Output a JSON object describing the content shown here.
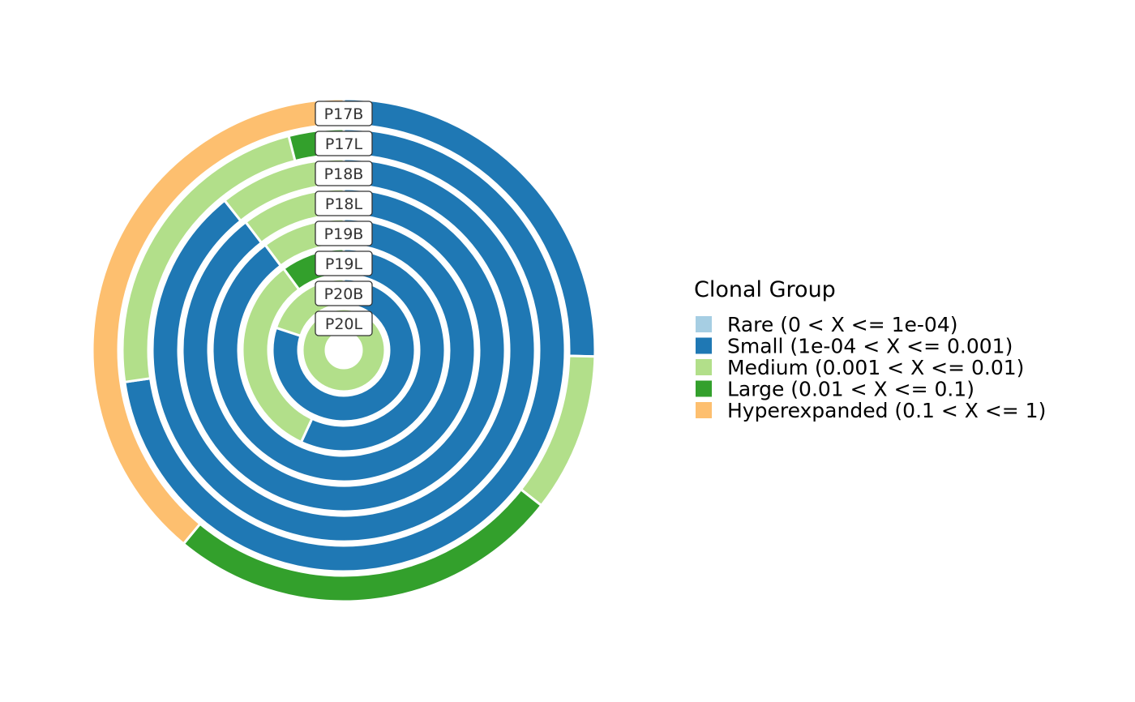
{
  "chart_data": {
    "type": "pie",
    "subtype": "concentric-donut",
    "legend": {
      "title": "Clonal Group",
      "placement": "right",
      "entries": [
        {
          "name": "Rare (0 < X <= 1e-04)",
          "color": "#A6CEE3"
        },
        {
          "name": "Small (1e-04 < X <= 0.001)",
          "color": "#1F78B4"
        },
        {
          "name": "Medium (0.001 < X <= 0.01)",
          "color": "#B2DF8A"
        },
        {
          "name": "Large (0.01 < X <= 0.1)",
          "color": "#33A02C"
        },
        {
          "name": "Hyperexpanded (0.1 < X <= 1)",
          "color": "#FDBF6F"
        }
      ]
    },
    "rings": [
      {
        "label": "P17B",
        "slices": [
          {
            "group": "Small (1e-04 < X <= 0.001)",
            "value": 0.254
          },
          {
            "group": "Medium (0.001 < X <= 0.01)",
            "value": 0.102
          },
          {
            "group": "Large (0.01 < X <= 0.1)",
            "value": 0.254
          },
          {
            "group": "Hyperexpanded (0.1 < X <= 1)",
            "value": 0.39
          }
        ]
      },
      {
        "label": "P17L",
        "slices": [
          {
            "group": "Small (1e-04 < X <= 0.001)",
            "value": 0.727
          },
          {
            "group": "Medium (0.001 < X <= 0.01)",
            "value": 0.233
          },
          {
            "group": "Large (0.01 < X <= 0.1)",
            "value": 0.04
          }
        ]
      },
      {
        "label": "P18B",
        "slices": [
          {
            "group": "Small (1e-04 < X <= 0.001)",
            "value": 0.893
          },
          {
            "group": "Medium (0.001 < X <= 0.01)",
            "value": 0.107
          }
        ]
      },
      {
        "label": "P18L",
        "slices": [
          {
            "group": "Small (1e-04 < X <= 0.001)",
            "value": 0.896
          },
          {
            "group": "Medium (0.001 < X <= 0.01)",
            "value": 0.104
          }
        ]
      },
      {
        "label": "P19B",
        "slices": [
          {
            "group": "Small (1e-04 < X <= 0.001)",
            "value": 0.898
          },
          {
            "group": "Medium (0.001 < X <= 0.01)",
            "value": 0.102
          }
        ]
      },
      {
        "label": "P19L",
        "slices": [
          {
            "group": "Small (1e-04 < X <= 0.001)",
            "value": 0.569
          },
          {
            "group": "Medium (0.001 < X <= 0.01)",
            "value": 0.33
          },
          {
            "group": "Large (0.01 < X <= 0.1)",
            "value": 0.101
          }
        ]
      },
      {
        "label": "P20B",
        "slices": [
          {
            "group": "Small (1e-04 < X <= 0.001)",
            "value": 0.801
          },
          {
            "group": "Medium (0.001 < X <= 0.01)",
            "value": 0.199
          }
        ]
      },
      {
        "label": "P20L",
        "slices": [
          {
            "group": "Medium (0.001 < X <= 0.01)",
            "value": 1.0
          }
        ]
      }
    ]
  }
}
